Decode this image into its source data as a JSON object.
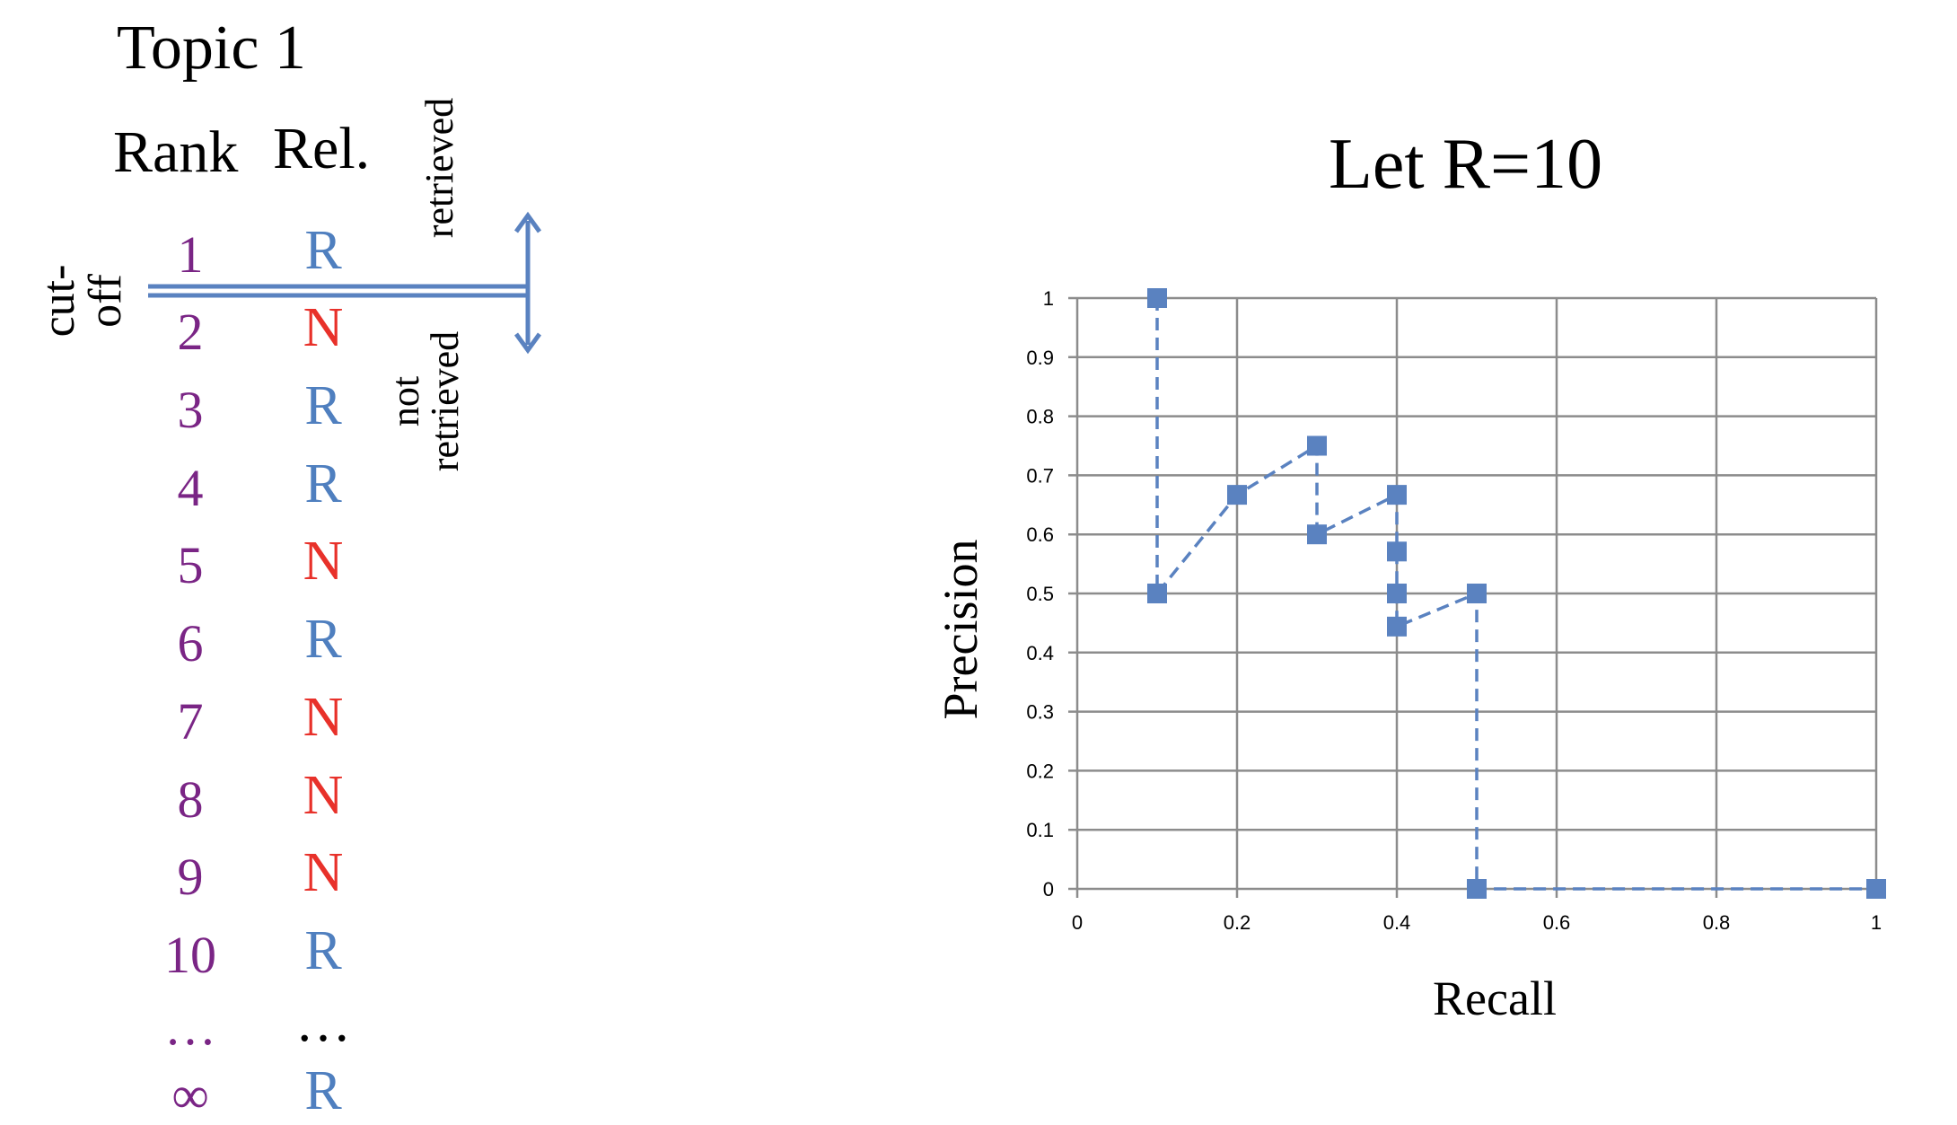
{
  "topic_title": "Topic 1",
  "columns": {
    "rank_header": "Rank",
    "rel_header": "Rel."
  },
  "ranks": [
    "1",
    "2",
    "3",
    "4",
    "5",
    "6",
    "7",
    "8",
    "9",
    "10",
    "…",
    "∞"
  ],
  "relevance": [
    "R",
    "N",
    "R",
    "R",
    "N",
    "R",
    "N",
    "N",
    "N",
    "R",
    "…",
    "R"
  ],
  "labels": {
    "cutoff_line1": "cut-",
    "cutoff_line2": "off",
    "retrieved": "retrieved",
    "not_retrieved_line1": "not",
    "not_retrieved_line2": "retrieved"
  },
  "colors": {
    "rank": "#7a2585",
    "relevant": "#4f7fbf",
    "nonrelevant": "#e8312a",
    "ellipsis_rel": "#000000",
    "series": "#5a82c0",
    "grid": "#8c8c8c"
  },
  "chart_title": "Let R=10",
  "chart_data": {
    "type": "scatter",
    "title": "",
    "xlabel": "Recall",
    "ylabel": "Precision",
    "xlim": [
      0,
      1
    ],
    "ylim": [
      0,
      1
    ],
    "xticks": [
      "0",
      "0.2",
      "0.4",
      "0.6",
      "0.8",
      "1"
    ],
    "yticks": [
      "0",
      "0.1",
      "0.2",
      "0.3",
      "0.4",
      "0.5",
      "0.6",
      "0.7",
      "0.8",
      "0.9",
      "1"
    ],
    "grid": true,
    "line_style": "dashed",
    "marker": "square",
    "series": [
      {
        "x": [
          0.1,
          0.1,
          0.2,
          0.3,
          0.3,
          0.4,
          0.4,
          0.4,
          0.4,
          0.5,
          0.5,
          1.0
        ],
        "y": [
          1.0,
          0.5,
          0.667,
          0.75,
          0.6,
          0.667,
          0.571,
          0.5,
          0.444,
          0.5,
          0.0,
          0.0
        ]
      }
    ]
  }
}
